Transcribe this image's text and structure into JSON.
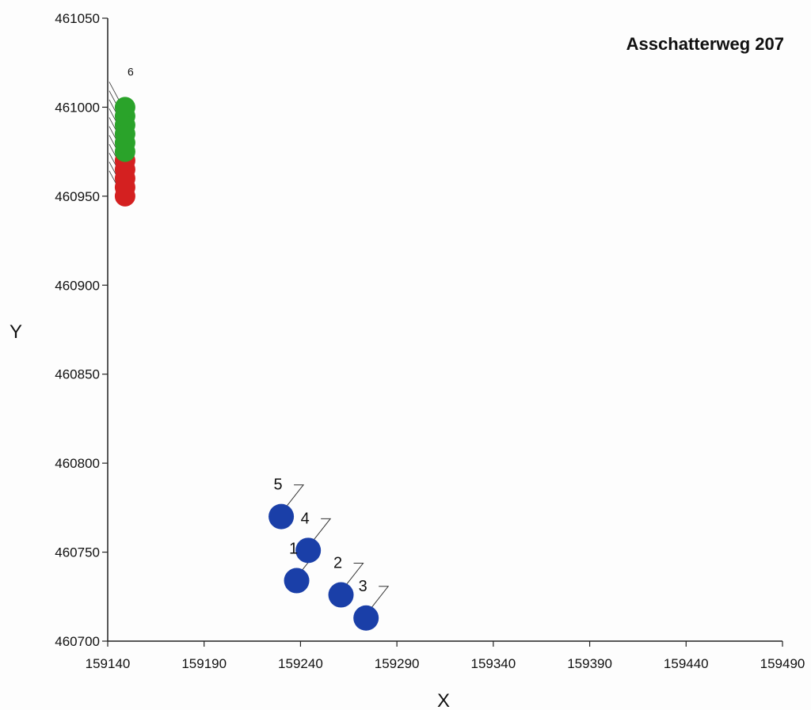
{
  "chart_data": {
    "type": "scatter",
    "title": "Asschatterweg 207",
    "xlabel": "X",
    "ylabel": "Y",
    "xlim": [
      159140,
      159490
    ],
    "ylim": [
      460700,
      461050
    ],
    "xticks": [
      "159140",
      "159190",
      "159240",
      "159290",
      "159340",
      "159390",
      "159440",
      "159490"
    ],
    "yticks": [
      "460700",
      "460750",
      "460800",
      "460850",
      "460900",
      "460950",
      "461000",
      "461050"
    ],
    "grid": false,
    "series": [
      {
        "color": "#1a3fa8",
        "points": [
          {
            "x": 159238,
            "y": 460734,
            "label": "1"
          },
          {
            "x": 159261,
            "y": 460726,
            "label": "2"
          },
          {
            "x": 159274,
            "y": 460713,
            "label": "3"
          },
          {
            "x": 159244,
            "y": 460751,
            "label": "4"
          },
          {
            "x": 159230,
            "y": 460770,
            "label": "5"
          }
        ]
      },
      {
        "color": "#d42020",
        "points": [
          {
            "x": 159149,
            "y": 460950,
            "label": ""
          },
          {
            "x": 159149,
            "y": 460955,
            "label": ""
          },
          {
            "x": 159149,
            "y": 460960,
            "label": ""
          },
          {
            "x": 159149,
            "y": 460965,
            "label": ""
          },
          {
            "x": 159149,
            "y": 460970,
            "label": ""
          }
        ]
      },
      {
        "color": "#2aa32a",
        "points": [
          {
            "x": 159149,
            "y": 460975,
            "label": ""
          },
          {
            "x": 159149,
            "y": 460980,
            "label": ""
          },
          {
            "x": 159149,
            "y": 460985,
            "label": ""
          },
          {
            "x": 159149,
            "y": 460990,
            "label": ""
          },
          {
            "x": 159149,
            "y": 460995,
            "label": ""
          },
          {
            "x": 159149,
            "y": 461000,
            "label": "6"
          }
        ]
      }
    ]
  }
}
